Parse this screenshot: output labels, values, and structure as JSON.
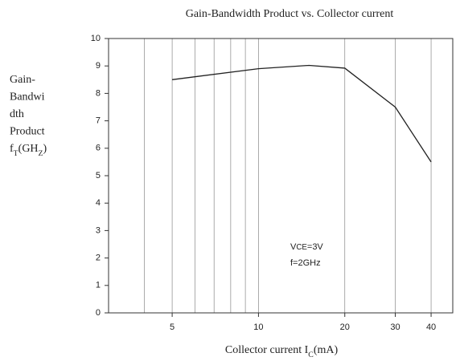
{
  "chart_data": {
    "type": "line",
    "title": "Gain-Bandwidth Product vs. Collector current",
    "ylabel_lines": [
      "Gain-",
      "Bandwi",
      "dth",
      "Product"
    ],
    "ylabel_unit": [
      {
        "text": "f"
      },
      {
        "text": "T",
        "sub": true
      },
      {
        "text": "(GH"
      },
      {
        "text": "Z",
        "sub": true
      },
      {
        "text": ")"
      }
    ],
    "xlabel": [
      {
        "text": "Collector current I"
      },
      {
        "text": "C",
        "sub": true
      },
      {
        "text": "(mA)"
      }
    ],
    "annotation_lines": [
      [
        {
          "text": "V"
        },
        {
          "text": "CE",
          "small": true
        },
        {
          "text": "=3V"
        }
      ],
      [
        {
          "text": "f=2GHz"
        }
      ]
    ],
    "x": [
      5,
      10,
      15,
      20,
      30,
      40
    ],
    "values": [
      8.5,
      8.9,
      9.02,
      8.92,
      7.5,
      5.5
    ],
    "color": "#222222",
    "xscale": "log",
    "xlim": [
      3,
      47.6
    ],
    "xticks": [
      5,
      10,
      20,
      30,
      40
    ],
    "xminor": [
      4,
      6,
      7,
      8,
      9
    ],
    "ylim": [
      0,
      10
    ],
    "yticks": [
      0,
      1,
      2,
      3,
      4,
      5,
      6,
      7,
      8,
      9,
      10
    ],
    "grid": "x"
  }
}
